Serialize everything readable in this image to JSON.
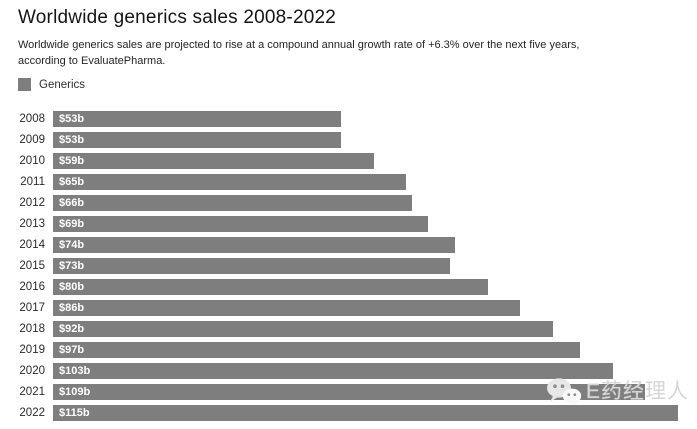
{
  "page": {
    "title": "Worldwide generics sales 2008-2022",
    "subtitle": "Worldwide generics sales are projected to rise at a compound annual growth rate of +6.3% over the next five years, according to EvaluatePharma."
  },
  "legend": {
    "label": "Generics"
  },
  "chart_data": {
    "type": "bar",
    "orientation": "horizontal",
    "title": "Worldwide generics sales 2008-2022",
    "subtitle": "Worldwide generics sales are projected to rise at a compound annual growth rate of +6.3% over the next five years, according to EvaluatePharma.",
    "series_name": "Generics",
    "categories": [
      "2008",
      "2009",
      "2010",
      "2011",
      "2012",
      "2013",
      "2014",
      "2015",
      "2016",
      "2017",
      "2018",
      "2019",
      "2020",
      "2021",
      "2022"
    ],
    "values": [
      53,
      53,
      59,
      65,
      66,
      69,
      74,
      73,
      80,
      86,
      92,
      97,
      103,
      109,
      115
    ],
    "value_labels": [
      "$53b",
      "$53b",
      "$59b",
      "$65b",
      "$66b",
      "$69b",
      "$74b",
      "$73b",
      "$80b",
      "$86b",
      "$92b",
      "$97b",
      "$103b",
      "$109b",
      "$115b"
    ],
    "unit": "billion USD",
    "xlim": [
      0,
      118.5
    ],
    "grid": false,
    "legend_position": "top-left",
    "bar_color": "#7e7e7e",
    "value_label_color": "#ffffff"
  },
  "watermark": {
    "text": "E药经理人",
    "icon": "wechat-icon"
  },
  "colors": {
    "background": "#ffffff",
    "bar": "#7e7e7e",
    "title_text": "#151515",
    "watermark_text": "#d6d6d6"
  }
}
